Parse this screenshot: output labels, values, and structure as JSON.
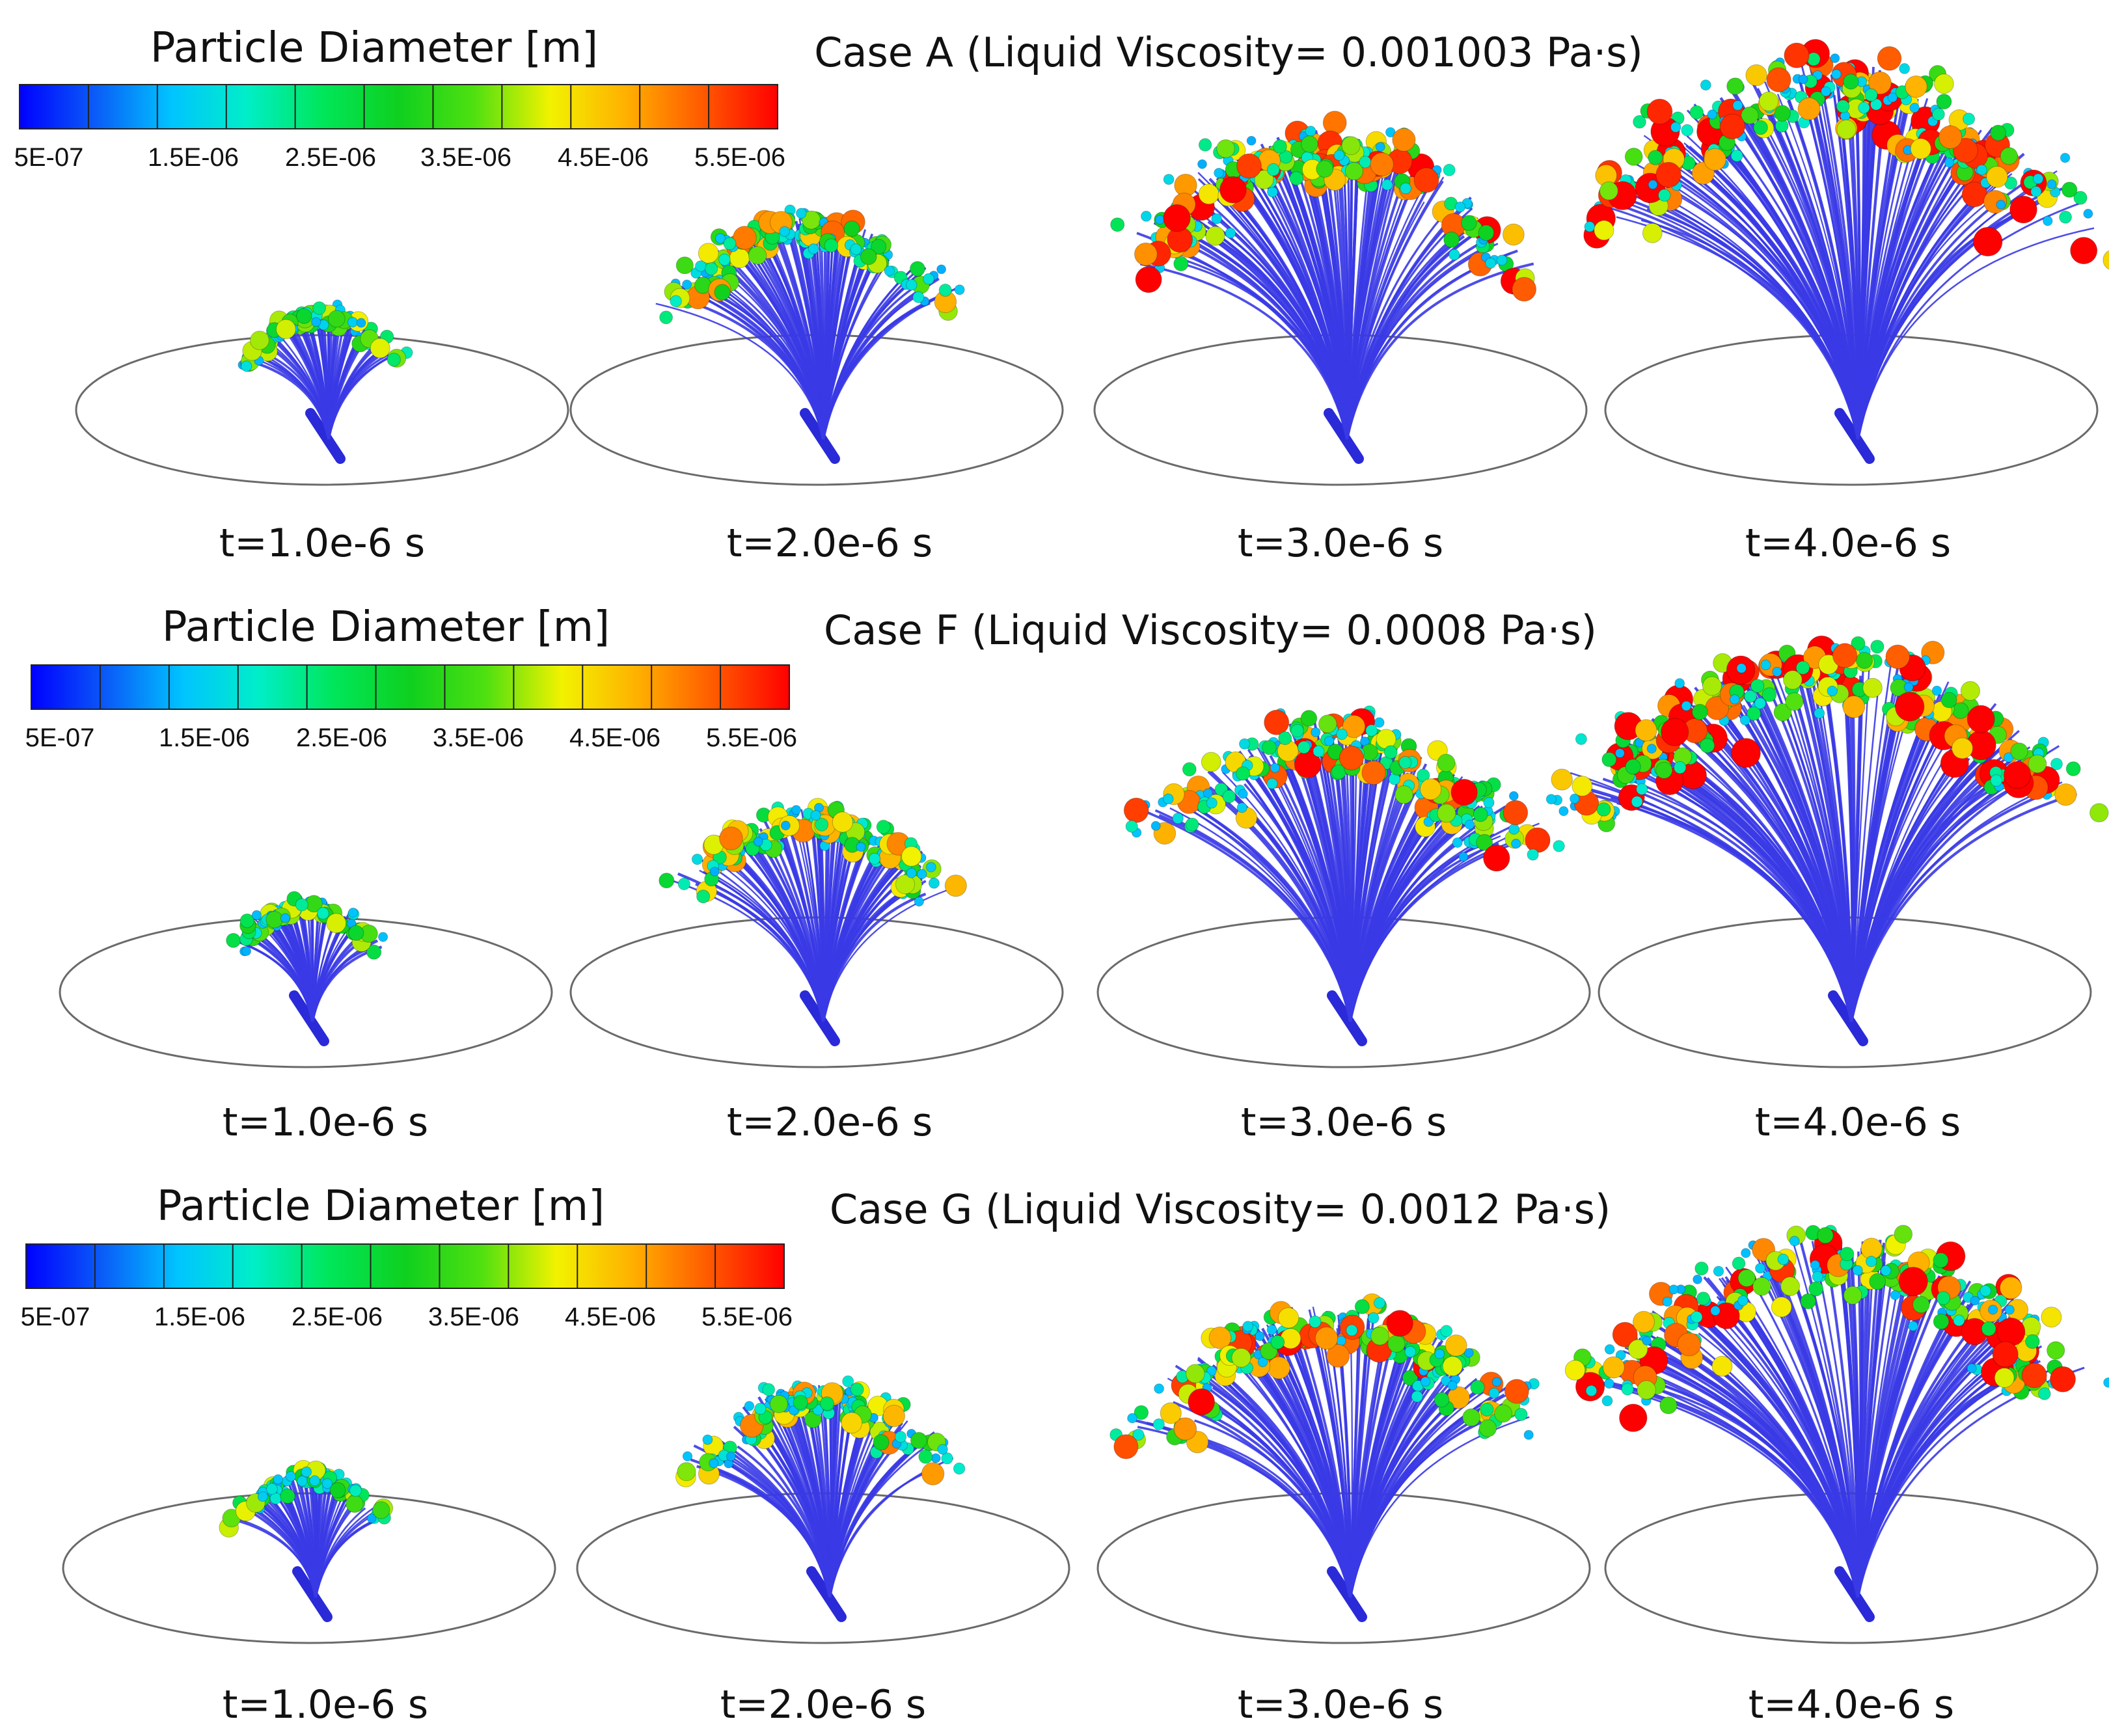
{
  "figure": {
    "colormap": [
      "#0000ff",
      "#0a5cf7",
      "#00c4ff",
      "#00eec8",
      "#00e65a",
      "#0fd01f",
      "#4fe010",
      "#f2f200",
      "#ffb000",
      "#ff5a00",
      "#ff0000"
    ],
    "rows": [
      {
        "legend": {
          "title": "Particle Diameter [m]",
          "ticks": [
            "5E-07",
            "1.5E-06",
            "2.5E-06",
            "3.5E-06",
            "4.5E-06",
            "5.5E-06"
          ]
        },
        "case_label": "Case A (Liquid Viscosity= 0.001003 Pa·s)",
        "snapshots": [
          {
            "time": "t=1.0e-6 s",
            "growth": 0.28
          },
          {
            "time": "t=2.0e-6 s",
            "growth": 0.55
          },
          {
            "time": "t=3.0e-6 s",
            "growth": 0.8
          },
          {
            "time": "t=4.0e-6 s",
            "growth": 1.0
          }
        ]
      },
      {
        "legend": {
          "title": "Particle Diameter [m]",
          "ticks": [
            "5E-07",
            "1.5E-06",
            "2.5E-06",
            "3.5E-06",
            "4.5E-06",
            "5.5E-06"
          ]
        },
        "case_label": "Case F (Liquid Viscosity= 0.0008 Pa·s)",
        "snapshots": [
          {
            "time": "t=1.0e-6 s",
            "growth": 0.25
          },
          {
            "time": "t=2.0e-6 s",
            "growth": 0.52
          },
          {
            "time": "t=3.0e-6 s",
            "growth": 0.78
          },
          {
            "time": "t=4.0e-6 s",
            "growth": 1.0
          }
        ]
      },
      {
        "legend": {
          "title": "Particle Diameter [m]",
          "ticks": [
            "5E-07",
            "1.5E-06",
            "2.5E-06",
            "3.5E-06",
            "4.5E-06",
            "5.5E-06"
          ]
        },
        "case_label": "Case G (Liquid Viscosity= 0.0012 Pa·s)",
        "snapshots": [
          {
            "time": "t=1.0e-6 s",
            "growth": 0.26
          },
          {
            "time": "t=2.0e-6 s",
            "growth": 0.52
          },
          {
            "time": "t=3.0e-6 s",
            "growth": 0.76
          },
          {
            "time": "t=4.0e-6 s",
            "growth": 0.96
          }
        ]
      }
    ]
  }
}
